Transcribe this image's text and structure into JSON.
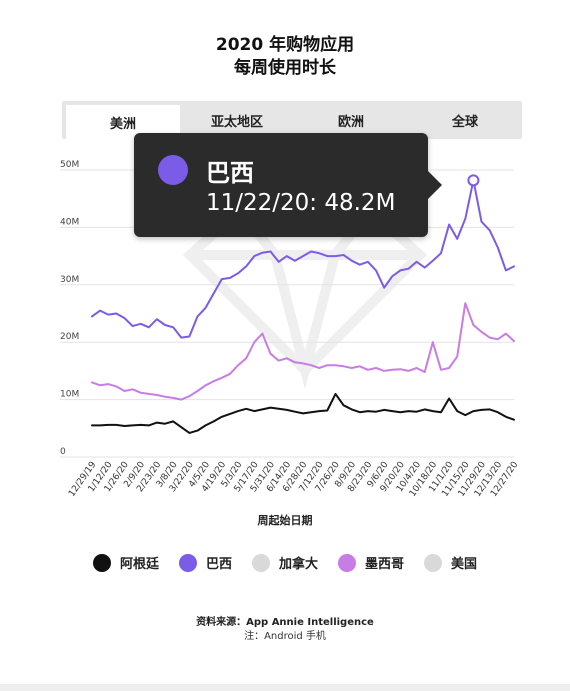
{
  "title_line1": "2020 年购物应用",
  "title_line2": "每周使用时长",
  "tabs": [
    {
      "label": "美洲",
      "active": true
    },
    {
      "label": "亚太地区",
      "active": false
    },
    {
      "label": "欧洲",
      "active": false
    },
    {
      "label": "全球",
      "active": false
    }
  ],
  "tooltip": {
    "series": "巴西",
    "text": "11/22/20: 48.2M",
    "color": "#7a5ce6"
  },
  "legend": [
    {
      "label": "阿根廷",
      "color": "#111111"
    },
    {
      "label": "巴西",
      "color": "#7a5ce6"
    },
    {
      "label": "加拿大",
      "color": "#d9d9d9"
    },
    {
      "label": "墨西哥",
      "color": "#c77ce6"
    },
    {
      "label": "美国",
      "color": "#d9d9d9"
    }
  ],
  "source_text": "资料来源：App Annie Intelligence",
  "note_text": "注：Android 手机",
  "chart_data": {
    "type": "line",
    "xlabel": "周起始日期",
    "ylabel": "",
    "ylim": [
      0,
      50
    ],
    "y_ticks": [
      "0",
      "10M",
      "20M",
      "30M",
      "40M",
      "50M"
    ],
    "x_tick_labels": [
      "12/29/19",
      "1/12/20",
      "1/26/20",
      "2/9/20",
      "2/23/20",
      "3/8/20",
      "3/22/20",
      "4/5/20",
      "4/19/20",
      "5/3/20",
      "5/17/20",
      "5/31/20",
      "6/14/20",
      "6/28/20",
      "7/12/20",
      "7/26/20",
      "8/9/20",
      "8/23/20",
      "9/6/20",
      "9/20/20",
      "10/4/20",
      "10/18/20",
      "11/1/20",
      "11/15/20",
      "11/29/20",
      "12/13/20",
      "12/27/20"
    ],
    "x_label_every": 2,
    "x": [
      "12/29/19",
      "1/5/20",
      "1/12/20",
      "1/19/20",
      "1/26/20",
      "2/2/20",
      "2/9/20",
      "2/16/20",
      "2/23/20",
      "3/1/20",
      "3/8/20",
      "3/15/20",
      "3/22/20",
      "3/29/20",
      "4/5/20",
      "4/12/20",
      "4/19/20",
      "4/26/20",
      "5/3/20",
      "5/10/20",
      "5/17/20",
      "5/24/20",
      "5/31/20",
      "6/7/20",
      "6/14/20",
      "6/21/20",
      "6/28/20",
      "7/5/20",
      "7/12/20",
      "7/19/20",
      "7/26/20",
      "8/2/20",
      "8/9/20",
      "8/16/20",
      "8/23/20",
      "8/30/20",
      "9/6/20",
      "9/13/20",
      "9/20/20",
      "9/27/20",
      "10/4/20",
      "10/11/20",
      "10/18/20",
      "10/25/20",
      "11/1/20",
      "11/8/20",
      "11/15/20",
      "11/22/20",
      "11/29/20",
      "12/6/20",
      "12/13/20",
      "12/20/20",
      "12/27/20"
    ],
    "grid": true,
    "series": [
      {
        "name": "巴西",
        "color": "#7a5ce6",
        "width": 2,
        "values": [
          24.5,
          25.5,
          24.8,
          25.0,
          24.2,
          22.8,
          23.2,
          22.6,
          24.0,
          23.0,
          22.6,
          20.8,
          21.0,
          24.5,
          26.0,
          28.5,
          31.0,
          31.2,
          32.0,
          33.2,
          35.0,
          35.6,
          35.8,
          34.0,
          35.0,
          34.2,
          35.0,
          35.8,
          35.5,
          35.0,
          35.0,
          35.2,
          34.2,
          33.5,
          34.0,
          32.5,
          29.5,
          31.5,
          32.5,
          32.8,
          34.0,
          33.0,
          34.2,
          35.5,
          40.5,
          38.0,
          41.5,
          48.2,
          41.0,
          39.5,
          36.5,
          32.5,
          33.2
        ]
      },
      {
        "name": "墨西哥",
        "color": "#c77ce6",
        "width": 2,
        "values": [
          13.0,
          12.5,
          12.7,
          12.3,
          11.5,
          11.8,
          11.2,
          11.0,
          10.8,
          10.5,
          10.3,
          10.0,
          10.6,
          11.5,
          12.5,
          13.2,
          13.8,
          14.5,
          16.0,
          17.2,
          20.0,
          21.5,
          18.0,
          16.8,
          17.2,
          16.5,
          16.3,
          16.0,
          15.5,
          16.0,
          16.0,
          15.8,
          15.5,
          15.8,
          15.2,
          15.5,
          15.0,
          15.2,
          15.3,
          15.0,
          15.5,
          14.8,
          20.0,
          15.2,
          15.5,
          17.5,
          26.8,
          23.0,
          21.8,
          20.8,
          20.5,
          21.5,
          20.2
        ]
      },
      {
        "name": "阿根廷",
        "color": "#111111",
        "width": 2,
        "values": [
          5.5,
          5.5,
          5.6,
          5.6,
          5.4,
          5.5,
          5.6,
          5.5,
          6.0,
          5.8,
          6.2,
          5.2,
          4.2,
          4.6,
          5.5,
          6.2,
          7.0,
          7.5,
          8.0,
          8.4,
          8.0,
          8.3,
          8.6,
          8.4,
          8.2,
          7.9,
          7.6,
          7.8,
          8.0,
          8.1,
          11.0,
          9.0,
          8.3,
          7.8,
          8.0,
          7.9,
          8.2,
          8.0,
          7.8,
          8.0,
          7.9,
          8.3,
          8.0,
          7.8,
          10.2,
          8.0,
          7.3,
          8.0,
          8.2,
          8.3,
          7.8,
          7.0,
          6.5
        ]
      }
    ],
    "highlight": {
      "series": "巴西",
      "x": "11/22/20",
      "value": 48.2
    }
  }
}
